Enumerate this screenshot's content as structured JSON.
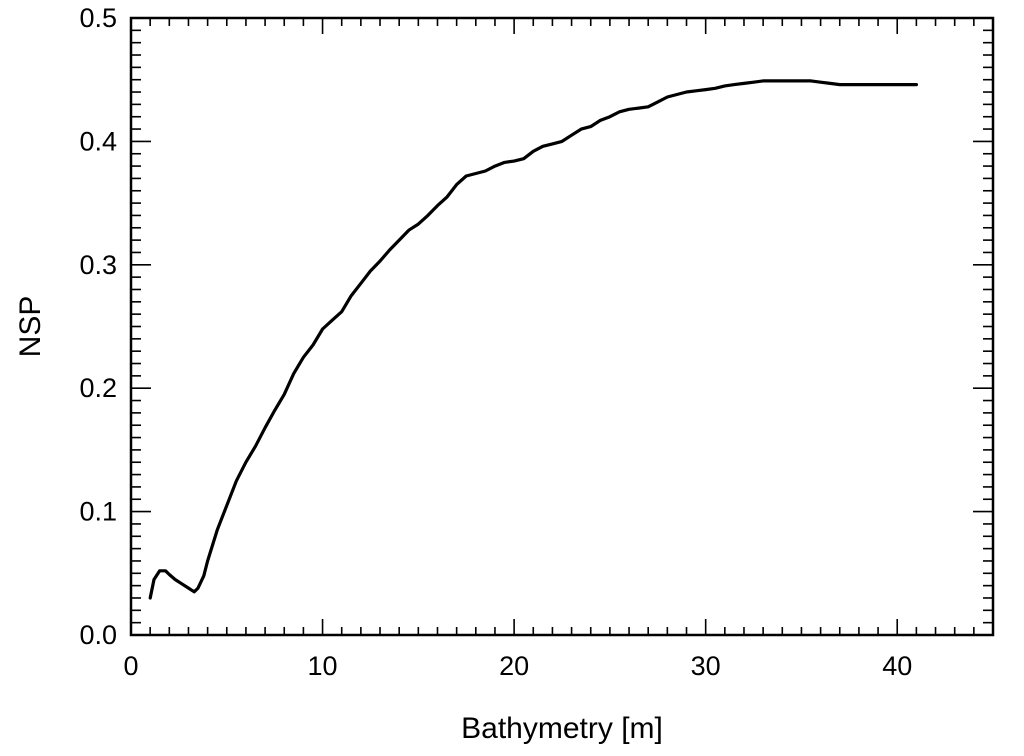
{
  "chart_data": {
    "type": "line",
    "title": "",
    "xlabel": "Bathymetry [m]",
    "ylabel": "NSP",
    "xlim": [
      0,
      45
    ],
    "ylim": [
      0.0,
      0.5
    ],
    "x_ticks": [
      0,
      10,
      20,
      30,
      40
    ],
    "x_tick_labels": [
      "0",
      "10",
      "20",
      "30",
      "40"
    ],
    "x_minor_step": 1,
    "y_ticks": [
      0.0,
      0.1,
      0.2,
      0.3,
      0.4,
      0.5
    ],
    "y_tick_labels": [
      "0.0",
      "0.1",
      "0.2",
      "0.3",
      "0.4",
      "0.5"
    ],
    "y_minor_step": 0.01,
    "grid": false,
    "legend": "none",
    "line_color": "#000000",
    "series": [
      {
        "x": [
          1.0,
          1.2,
          1.5,
          1.8,
          2.0,
          2.3,
          2.6,
          3.0,
          3.3,
          3.5,
          3.8,
          4.0,
          4.5,
          5.0,
          5.5,
          6.0,
          6.5,
          7.0,
          7.5,
          8.0,
          8.5,
          9.0,
          9.5,
          10.0,
          10.5,
          11.0,
          11.5,
          12.0,
          12.5,
          13.0,
          13.5,
          14.0,
          14.5,
          15.0,
          15.5,
          16.0,
          16.5,
          17.0,
          17.5,
          18.0,
          18.5,
          19.0,
          19.5,
          20.0,
          20.5,
          21.0,
          21.5,
          22.0,
          22.5,
          23.0,
          23.5,
          24.0,
          24.5,
          25.0,
          25.5,
          26.0,
          26.5,
          27.0,
          27.5,
          28.0,
          28.5,
          29.0,
          29.5,
          30.0,
          30.5,
          31.0,
          31.5,
          32.0,
          32.5,
          33.0,
          33.5,
          34.0,
          34.5,
          35.0,
          35.5,
          36.0,
          36.5,
          37.0,
          38.0,
          39.0,
          40.0,
          41.0
        ],
        "y": [
          0.03,
          0.045,
          0.052,
          0.052,
          0.049,
          0.045,
          0.042,
          0.038,
          0.035,
          0.038,
          0.048,
          0.06,
          0.085,
          0.105,
          0.125,
          0.14,
          0.153,
          0.168,
          0.182,
          0.195,
          0.212,
          0.225,
          0.235,
          0.248,
          0.255,
          0.262,
          0.275,
          0.285,
          0.295,
          0.303,
          0.312,
          0.32,
          0.328,
          0.333,
          0.34,
          0.348,
          0.355,
          0.365,
          0.372,
          0.374,
          0.376,
          0.38,
          0.383,
          0.384,
          0.386,
          0.392,
          0.396,
          0.398,
          0.4,
          0.405,
          0.41,
          0.412,
          0.417,
          0.42,
          0.424,
          0.426,
          0.427,
          0.428,
          0.432,
          0.436,
          0.438,
          0.44,
          0.441,
          0.442,
          0.443,
          0.445,
          0.446,
          0.447,
          0.448,
          0.449,
          0.449,
          0.449,
          0.449,
          0.449,
          0.449,
          0.448,
          0.447,
          0.446,
          0.446,
          0.446,
          0.446,
          0.446
        ]
      }
    ]
  }
}
